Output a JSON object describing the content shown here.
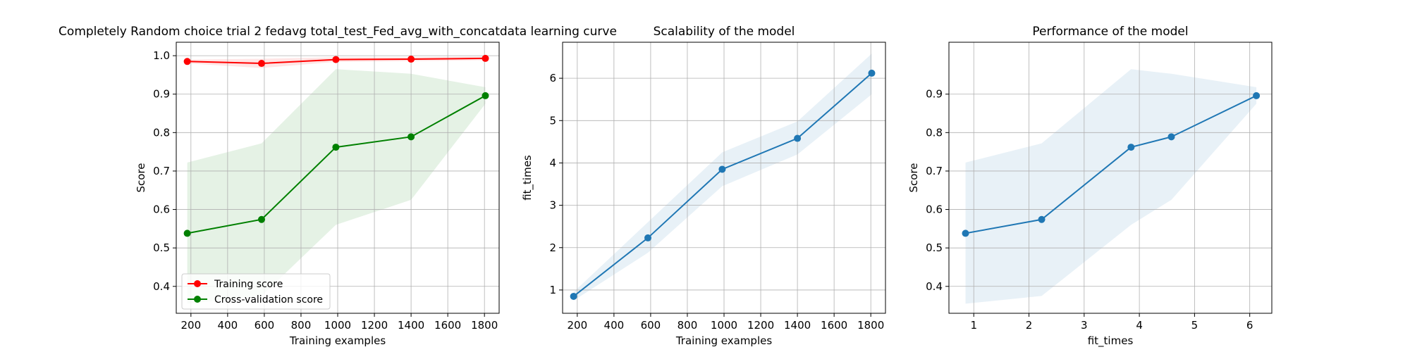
{
  "chart_data": [
    {
      "type": "line",
      "title": "Completely Random choice trial 2 fedavg total_test_Fed_avg_with_concatdata learning curve",
      "xlabel": "Training examples",
      "ylabel": "Score",
      "xlim": [
        120,
        1880
      ],
      "ylim": [
        0.33,
        1.035
      ],
      "xticks": [
        200,
        400,
        600,
        800,
        1000,
        1200,
        1400,
        1600,
        1800
      ],
      "yticks": [
        0.4,
        0.5,
        0.6,
        0.7,
        0.8,
        0.9,
        1.0
      ],
      "ytick_labels": [
        "0.4",
        "0.5",
        "0.6",
        "0.7",
        "0.8",
        "0.9",
        "1.0"
      ],
      "grid": true,
      "legend_position": "lower-left",
      "series": [
        {
          "name": "Training score",
          "color": "#ff0000",
          "x": [
            180,
            585,
            990,
            1400,
            1805
          ],
          "values": [
            0.985,
            0.98,
            0.99,
            0.991,
            0.993
          ],
          "band_low": [
            0.98,
            0.968,
            0.984,
            0.986,
            0.988
          ],
          "band_high": [
            0.99,
            0.992,
            0.996,
            0.996,
            0.998
          ]
        },
        {
          "name": "Cross-validation score",
          "color": "#008000",
          "x": [
            180,
            585,
            990,
            1400,
            1805
          ],
          "values": [
            0.538,
            0.574,
            0.762,
            0.789,
            0.896
          ],
          "band_low": [
            0.355,
            0.375,
            0.56,
            0.625,
            0.875
          ],
          "band_high": [
            0.722,
            0.772,
            0.965,
            0.953,
            0.918
          ]
        }
      ]
    },
    {
      "type": "line",
      "title": "Scalability of the model",
      "xlabel": "Training examples",
      "ylabel": "fit_times",
      "xlim": [
        120,
        1880
      ],
      "ylim": [
        0.45,
        6.85
      ],
      "xticks": [
        200,
        400,
        600,
        800,
        1000,
        1200,
        1400,
        1600,
        1800
      ],
      "yticks": [
        1,
        2,
        3,
        4,
        5,
        6
      ],
      "ytick_labels": [
        "1",
        "2",
        "3",
        "4",
        "5",
        "6"
      ],
      "grid": true,
      "series": [
        {
          "color": "#1f77b4",
          "x": [
            180,
            585,
            990,
            1400,
            1805
          ],
          "values": [
            0.85,
            2.23,
            3.85,
            4.58,
            6.12
          ],
          "band_low": [
            0.75,
            1.88,
            3.45,
            4.2,
            5.62
          ],
          "band_high": [
            0.95,
            2.6,
            4.25,
            4.98,
            6.58
          ]
        }
      ]
    },
    {
      "type": "line",
      "title": "Performance of the model",
      "xlabel": "fit_times",
      "ylabel": "Score",
      "xlim": [
        0.55,
        6.4
      ],
      "ylim": [
        0.33,
        1.035
      ],
      "xticks": [
        1,
        2,
        3,
        4,
        5,
        6
      ],
      "yticks": [
        0.4,
        0.5,
        0.6,
        0.7,
        0.8,
        0.9
      ],
      "ytick_labels": [
        "0.4",
        "0.5",
        "0.6",
        "0.7",
        "0.8",
        "0.9"
      ],
      "grid": true,
      "series": [
        {
          "color": "#1f77b4",
          "x": [
            0.85,
            2.23,
            3.85,
            4.58,
            6.12
          ],
          "values": [
            0.538,
            0.574,
            0.762,
            0.789,
            0.896
          ],
          "band_low": [
            0.355,
            0.375,
            0.56,
            0.625,
            0.875
          ],
          "band_high": [
            0.722,
            0.772,
            0.965,
            0.953,
            0.918
          ]
        }
      ]
    }
  ]
}
